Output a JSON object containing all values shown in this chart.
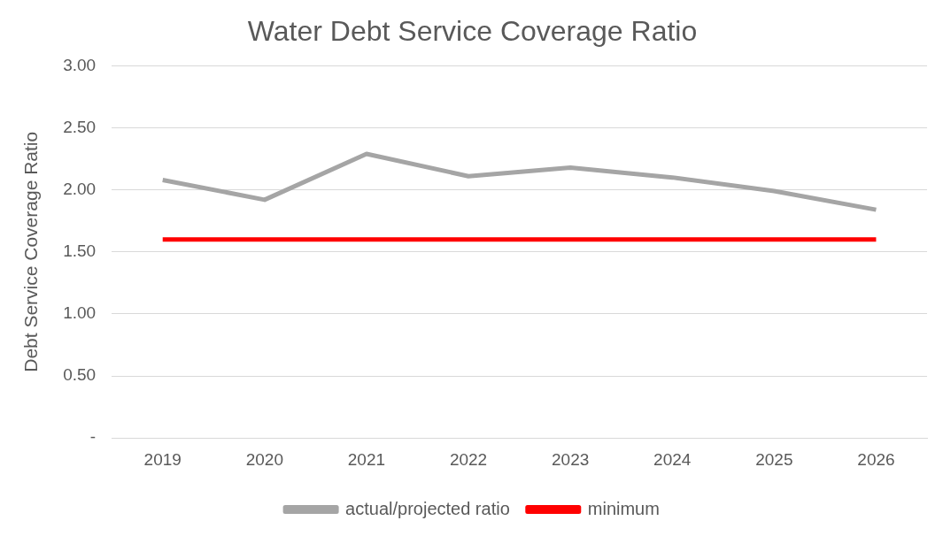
{
  "chart_data": {
    "type": "line",
    "title": "Water Debt Service Coverage Ratio",
    "ylabel": "Debt Service Coverage Ratio",
    "categories": [
      "2019",
      "2020",
      "2021",
      "2022",
      "2023",
      "2024",
      "2025",
      "2026"
    ],
    "series": [
      {
        "name": "actual/projected ratio",
        "color": "#a5a5a5",
        "values": [
          2.08,
          1.92,
          2.29,
          2.11,
          2.18,
          2.1,
          1.99,
          1.84
        ]
      },
      {
        "name": "minimum",
        "color": "#ff0000",
        "values": [
          1.6,
          1.6,
          1.6,
          1.6,
          1.6,
          1.6,
          1.6,
          1.6
        ]
      }
    ],
    "ylim": [
      0,
      3
    ],
    "yticks": [
      {
        "value": 0,
        "label": "-"
      },
      {
        "value": 0.5,
        "label": "0.50"
      },
      {
        "value": 1,
        "label": "1.00"
      },
      {
        "value": 1.5,
        "label": "1.50"
      },
      {
        "value": 2,
        "label": "2.00"
      },
      {
        "value": 2.5,
        "label": "2.50"
      },
      {
        "value": 3,
        "label": "3.00"
      }
    ],
    "grid": "y",
    "legend": "bottom",
    "marker": "none",
    "line_style": "solid"
  }
}
